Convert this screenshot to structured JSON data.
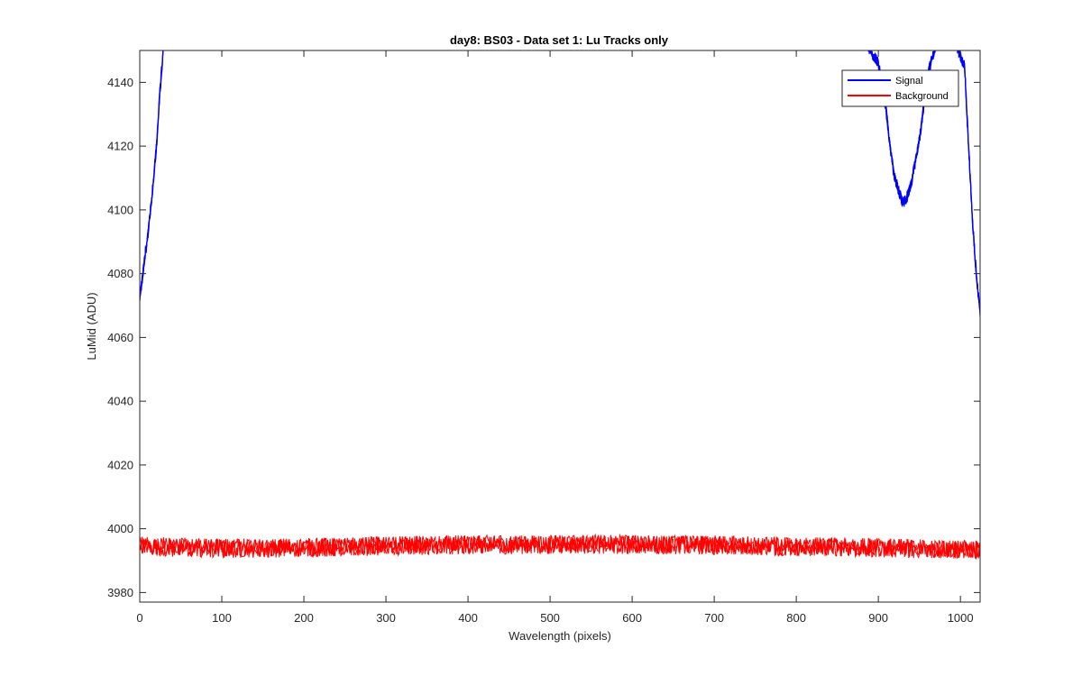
{
  "chart_data": {
    "type": "line",
    "title": "day8: BS03 - Data set 1: Lu Tracks only",
    "xlabel": "Wavelength (pixels)",
    "ylabel": "LuMid (ADU)",
    "xlim": [
      0,
      1024
    ],
    "ylim": [
      3977,
      4150
    ],
    "xticks": [
      0,
      100,
      200,
      300,
      400,
      500,
      600,
      700,
      800,
      900,
      1000
    ],
    "yticks": [
      3980,
      4000,
      4020,
      4040,
      4060,
      4080,
      4100,
      4120,
      4140
    ],
    "xtick_labels": [
      "0",
      "100",
      "200",
      "300",
      "400",
      "500",
      "600",
      "700",
      "800",
      "900",
      "1000"
    ],
    "ytick_labels": [
      "3980",
      "4000",
      "4020",
      "4040",
      "4060",
      "4080",
      "4100",
      "4120",
      "4140"
    ],
    "grid": false,
    "legend_position": "top-right",
    "series": [
      {
        "name": "Signal",
        "color": "#0000ff",
        "x": [
          0,
          3,
          6,
          9,
          12,
          15,
          18,
          21,
          24,
          27,
          30,
          880,
          890,
          900,
          905,
          910,
          915,
          920,
          925,
          930,
          935,
          940,
          945,
          950,
          955,
          960,
          970,
          980,
          990,
          1005,
          1010,
          1015,
          1020,
          1024
        ],
        "y": [
          4073,
          4078,
          4085,
          4090,
          4097,
          4105,
          4113,
          4122,
          4135,
          4145,
          4155,
          4155,
          4150,
          4146,
          4138,
          4130,
          4118,
          4110,
          4106,
          4102,
          4104,
          4108,
          4115,
          4122,
          4132,
          4142,
          4152,
          4160,
          4155,
          4145,
          4120,
          4095,
          4078,
          4068
        ]
      },
      {
        "name": "Background",
        "color": "#ff0000",
        "x": [
          0,
          50,
          100,
          150,
          200,
          250,
          300,
          350,
          400,
          450,
          500,
          550,
          600,
          650,
          700,
          750,
          800,
          850,
          900,
          950,
          1000,
          1024
        ],
        "y": [
          3994.5,
          3994.2,
          3993.9,
          3993.9,
          3994.1,
          3994.3,
          3994.6,
          3994.8,
          3995.0,
          3995.0,
          3995.1,
          3995.1,
          3995.0,
          3995.0,
          3994.9,
          3994.7,
          3994.5,
          3994.3,
          3994.0,
          3993.8,
          3993.6,
          3993.5
        ],
        "noise_amplitude": 3
      }
    ]
  }
}
